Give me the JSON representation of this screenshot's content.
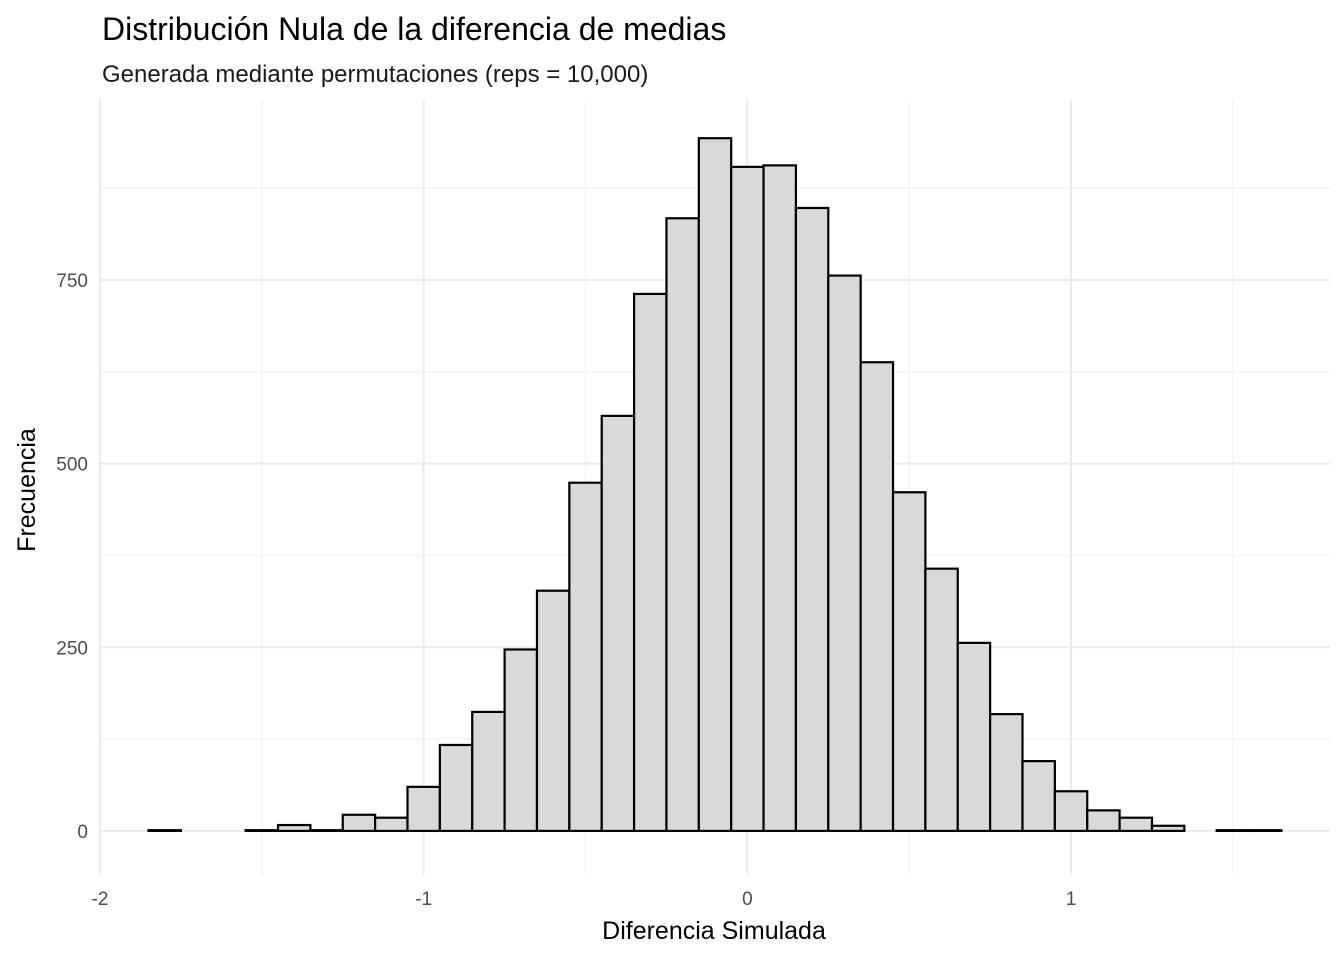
{
  "chart_data": {
    "type": "bar",
    "subtype": "histogram",
    "title": "Distribución Nula de la diferencia de medias",
    "subtitle": "Generada mediante permutaciones (reps = 10,000)",
    "xlabel": "Diferencia Simulada",
    "ylabel": "Frecuencia",
    "xlim": [
      -2.0,
      1.8
    ],
    "ylim": [
      -60,
      995
    ],
    "x_ticks": [
      -2,
      -1,
      0,
      1
    ],
    "x_tick_labels": [
      "-2",
      "-1",
      "0",
      "1"
    ],
    "y_ticks": [
      0,
      250,
      500,
      750
    ],
    "y_tick_labels": [
      "0",
      "250",
      "500",
      "750"
    ],
    "grid": true,
    "bin_width": 0.1,
    "bins": [
      {
        "x0": -1.85,
        "x1": -1.75,
        "count": 1
      },
      {
        "x0": -1.75,
        "x1": -1.65,
        "count": 0
      },
      {
        "x0": -1.65,
        "x1": -1.55,
        "count": 0
      },
      {
        "x0": -1.55,
        "x1": -1.45,
        "count": 1
      },
      {
        "x0": -1.45,
        "x1": -1.35,
        "count": 8
      },
      {
        "x0": -1.35,
        "x1": -1.25,
        "count": 1
      },
      {
        "x0": -1.25,
        "x1": -1.15,
        "count": 22
      },
      {
        "x0": -1.15,
        "x1": -1.05,
        "count": 18
      },
      {
        "x0": -1.05,
        "x1": -0.95,
        "count": 60
      },
      {
        "x0": -0.95,
        "x1": -0.85,
        "count": 117
      },
      {
        "x0": -0.85,
        "x1": -0.75,
        "count": 162
      },
      {
        "x0": -0.75,
        "x1": -0.65,
        "count": 247
      },
      {
        "x0": -0.65,
        "x1": -0.55,
        "count": 327
      },
      {
        "x0": -0.55,
        "x1": -0.45,
        "count": 474
      },
      {
        "x0": -0.45,
        "x1": -0.35,
        "count": 565
      },
      {
        "x0": -0.35,
        "x1": -0.25,
        "count": 731
      },
      {
        "x0": -0.25,
        "x1": -0.15,
        "count": 834
      },
      {
        "x0": -0.15,
        "x1": -0.05,
        "count": 943
      },
      {
        "x0": -0.05,
        "x1": 0.05,
        "count": 904
      },
      {
        "x0": 0.05,
        "x1": 0.15,
        "count": 906
      },
      {
        "x0": 0.15,
        "x1": 0.25,
        "count": 848
      },
      {
        "x0": 0.25,
        "x1": 0.35,
        "count": 756
      },
      {
        "x0": 0.35,
        "x1": 0.45,
        "count": 638
      },
      {
        "x0": 0.45,
        "x1": 0.55,
        "count": 461
      },
      {
        "x0": 0.55,
        "x1": 0.65,
        "count": 357
      },
      {
        "x0": 0.65,
        "x1": 0.75,
        "count": 256
      },
      {
        "x0": 0.75,
        "x1": 0.85,
        "count": 159
      },
      {
        "x0": 0.85,
        "x1": 0.95,
        "count": 95
      },
      {
        "x0": 0.95,
        "x1": 1.05,
        "count": 54
      },
      {
        "x0": 1.05,
        "x1": 1.15,
        "count": 28
      },
      {
        "x0": 1.15,
        "x1": 1.25,
        "count": 18
      },
      {
        "x0": 1.25,
        "x1": 1.35,
        "count": 7
      },
      {
        "x0": 1.35,
        "x1": 1.45,
        "count": 0
      },
      {
        "x0": 1.45,
        "x1": 1.55,
        "count": 1
      },
      {
        "x0": 1.55,
        "x1": 1.65,
        "count": 1
      }
    ],
    "colors": {
      "bar_fill": "#d9d9d9",
      "bar_stroke": "#000000",
      "background": "#ffffff"
    }
  }
}
